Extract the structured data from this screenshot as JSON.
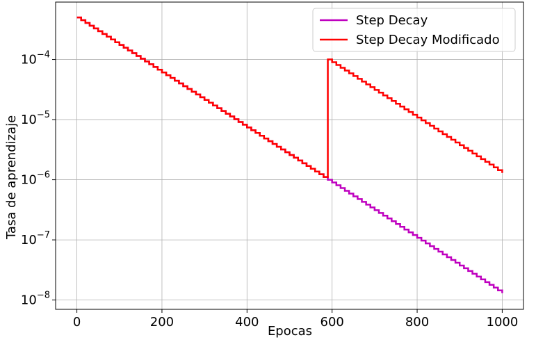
{
  "chart_data": {
    "type": "line",
    "title": "",
    "xlabel": "Epocas",
    "ylabel": "Tasa de aprendizaje",
    "xlim": [
      -50,
      1050
    ],
    "ylim": [
      7e-09,
      0.0009
    ],
    "yscale": "log",
    "grid": true,
    "legend_position": "top-right",
    "x_ticks": [
      0,
      200,
      400,
      600,
      800,
      1000
    ],
    "x_tick_labels": [
      "0",
      "200",
      "400",
      "600",
      "800",
      "1000"
    ],
    "y_ticks": [
      1e-08,
      1e-07,
      1e-06,
      1e-05,
      0.0001
    ],
    "y_tick_labels": [
      {
        "base": "10",
        "exp": "−8"
      },
      {
        "base": "10",
        "exp": "−7"
      },
      {
        "base": "10",
        "exp": "−6"
      },
      {
        "base": "10",
        "exp": "−5"
      },
      {
        "base": "10",
        "exp": "−4"
      }
    ],
    "series": [
      {
        "name": "Step Decay",
        "color": "#bf00bf",
        "step_size": 10,
        "x": [
          0,
          590,
          1000
        ],
        "y": [
          0.0005,
          1e-06,
          1.3e-08
        ]
      },
      {
        "name": "Step Decay Modificado",
        "color": "#ff0000",
        "step_size": 10,
        "x": [
          0,
          590,
          590,
          1000
        ],
        "y": [
          0.0005,
          1e-06,
          0.0001,
          1.3e-06
        ]
      }
    ]
  }
}
